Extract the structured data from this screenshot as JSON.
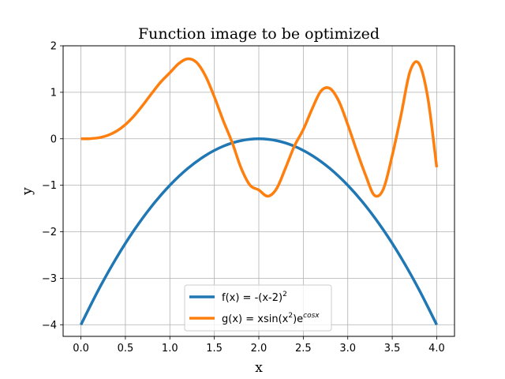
{
  "chart_data": {
    "type": "line",
    "title": "Function image to be optimized",
    "xlabel": "x",
    "ylabel": "y",
    "xlim": [
      -0.2,
      4.2
    ],
    "ylim": [
      -4.25,
      2
    ],
    "xticks": [
      0.0,
      0.5,
      1.0,
      1.5,
      2.0,
      2.5,
      3.0,
      3.5,
      4.0
    ],
    "xtick_labels": [
      "0.0",
      "0.5",
      "1.0",
      "1.5",
      "2.0",
      "2.5",
      "3.0",
      "3.5",
      "4.0"
    ],
    "yticks": [
      -4,
      -3,
      -2,
      -1,
      0,
      1,
      2
    ],
    "ytick_labels": [
      "−4",
      "−3",
      "−2",
      "−1",
      "0",
      "1",
      "2"
    ],
    "grid": true,
    "legend_position": "lower-center",
    "series": [
      {
        "name": "f(x) = -(x-2)",
        "name_superscript": "2",
        "color": "#1f77b4",
        "x": [
          0.0,
          0.2,
          0.4,
          0.6,
          0.8,
          1.0,
          1.2,
          1.4,
          1.6,
          1.8,
          2.0,
          2.2,
          2.4,
          2.6,
          2.8,
          3.0,
          3.2,
          3.4,
          3.6,
          3.8,
          4.0
        ],
        "y": [
          -4.0,
          -3.24,
          -2.56,
          -1.96,
          -1.44,
          -1.0,
          -0.64,
          -0.36,
          -0.16,
          -0.04,
          0.0,
          -0.04,
          -0.16,
          -0.36,
          -0.64,
          -1.0,
          -1.44,
          -1.96,
          -2.56,
          -3.24,
          -4.0
        ]
      },
      {
        "name": "g(x) = xsin(x",
        "name_superscript": "2",
        "name_suffix": ")e",
        "name_suffix_superscript": "cosx",
        "color": "#ff7f0e",
        "x": [
          0.0,
          0.1,
          0.2,
          0.3,
          0.4,
          0.5,
          0.6,
          0.7,
          0.8,
          0.9,
          1.0,
          1.1,
          1.2,
          1.3,
          1.4,
          1.5,
          1.6,
          1.7,
          1.8,
          1.9,
          2.0,
          2.1,
          2.2,
          2.3,
          2.4,
          2.5,
          2.6,
          2.7,
          2.8,
          2.9,
          3.0,
          3.1,
          3.2,
          3.3,
          3.4,
          3.5,
          3.6,
          3.7,
          3.8,
          3.9,
          4.0
        ],
        "y": [
          0.0,
          0.003,
          0.022,
          0.072,
          0.163,
          0.305,
          0.498,
          0.733,
          0.986,
          1.226,
          1.42,
          1.617,
          1.72,
          1.644,
          1.353,
          0.902,
          0.391,
          -0.077,
          -0.625,
          -0.995,
          -1.102,
          -1.235,
          -1.072,
          -0.631,
          -0.158,
          0.199,
          0.646,
          1.03,
          1.082,
          0.808,
          0.305,
          -0.253,
          -0.781,
          -1.217,
          -1.083,
          -0.36,
          0.519,
          1.45,
          1.62,
          0.883,
          -0.612
        ]
      }
    ]
  }
}
